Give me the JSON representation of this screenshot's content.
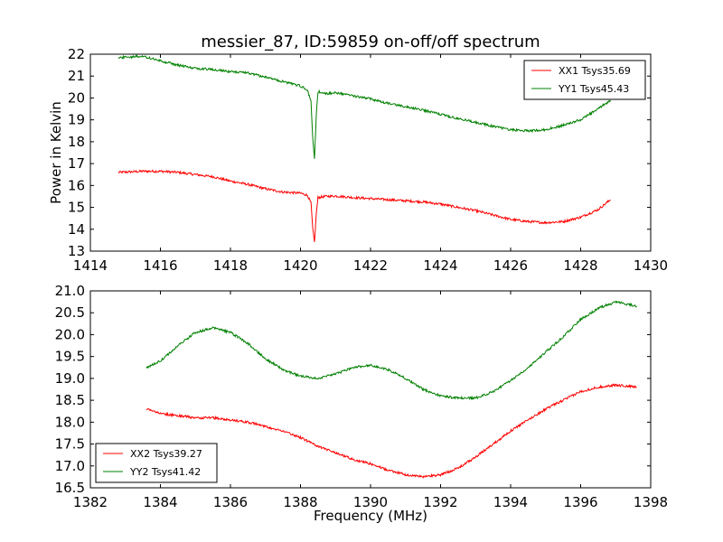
{
  "chart_data": [
    {
      "type": "line",
      "title": "messier_87, ID:59859 on-off/off spectrum",
      "xlabel": "",
      "ylabel": "Power in Kelvin",
      "xlim": [
        1414,
        1430
      ],
      "ylim": [
        13,
        22
      ],
      "xticks": [
        1414,
        1416,
        1418,
        1420,
        1422,
        1424,
        1426,
        1428,
        1430
      ],
      "yticks": [
        13,
        14,
        15,
        16,
        17,
        18,
        19,
        20,
        21,
        22
      ],
      "xtick_labels": [
        "1414",
        "1416",
        "1418",
        "1420",
        "1422",
        "1424",
        "1426",
        "1428",
        "1430"
      ],
      "ytick_labels": [
        "13",
        "14",
        "15",
        "16",
        "17",
        "18",
        "19",
        "20",
        "21",
        "22"
      ],
      "legend_position": "top-right",
      "series": [
        {
          "name": "XX1 Tsys35.69",
          "color": "#ff0000",
          "x": [
            1414.8,
            1415.5,
            1416.0,
            1416.5,
            1417.0,
            1417.5,
            1418.0,
            1418.5,
            1419.0,
            1419.5,
            1420.0,
            1420.2,
            1420.3,
            1420.35,
            1420.4,
            1420.45,
            1420.5,
            1420.7,
            1421.0,
            1421.5,
            1422.0,
            1422.5,
            1423.0,
            1423.5,
            1424.0,
            1424.5,
            1425.0,
            1425.5,
            1426.0,
            1426.5,
            1427.0,
            1427.5,
            1428.0,
            1428.5,
            1428.85
          ],
          "values": [
            16.6,
            16.65,
            16.65,
            16.6,
            16.5,
            16.4,
            16.2,
            16.05,
            15.85,
            15.7,
            15.65,
            15.55,
            15.2,
            14.0,
            13.4,
            14.7,
            15.45,
            15.5,
            15.52,
            15.45,
            15.4,
            15.35,
            15.3,
            15.25,
            15.15,
            15.0,
            14.85,
            14.65,
            14.45,
            14.35,
            14.3,
            14.35,
            14.55,
            14.9,
            15.35
          ]
        },
        {
          "name": "YY1 Tsys45.43",
          "color": "#008000",
          "x": [
            1414.8,
            1415.5,
            1416.0,
            1416.5,
            1417.0,
            1417.5,
            1418.0,
            1418.5,
            1419.0,
            1419.5,
            1420.0,
            1420.2,
            1420.3,
            1420.35,
            1420.4,
            1420.45,
            1420.5,
            1420.7,
            1421.0,
            1421.5,
            1422.0,
            1422.5,
            1423.0,
            1423.5,
            1424.0,
            1424.5,
            1425.0,
            1425.5,
            1426.0,
            1426.5,
            1427.0,
            1427.5,
            1428.0,
            1428.5,
            1428.85
          ],
          "values": [
            21.85,
            21.9,
            21.7,
            21.5,
            21.35,
            21.3,
            21.2,
            21.15,
            20.95,
            20.75,
            20.55,
            20.35,
            19.8,
            18.2,
            17.2,
            19.2,
            20.3,
            20.2,
            20.25,
            20.1,
            19.95,
            19.75,
            19.6,
            19.45,
            19.25,
            19.05,
            18.9,
            18.7,
            18.55,
            18.5,
            18.55,
            18.75,
            19.0,
            19.5,
            19.9
          ]
        }
      ]
    },
    {
      "type": "line",
      "title": "",
      "xlabel": "Frequency (MHz)",
      "ylabel": "",
      "xlim": [
        1382,
        1398
      ],
      "ylim": [
        16.5,
        21.0
      ],
      "xticks": [
        1382,
        1384,
        1386,
        1388,
        1390,
        1392,
        1394,
        1396,
        1398
      ],
      "yticks": [
        16.5,
        17.0,
        17.5,
        18.0,
        18.5,
        19.0,
        19.5,
        20.0,
        20.5,
        21.0
      ],
      "xtick_labels": [
        "1382",
        "1384",
        "1386",
        "1388",
        "1390",
        "1392",
        "1394",
        "1396",
        "1398"
      ],
      "ytick_labels": [
        "16.5",
        "17.0",
        "17.5",
        "18.0",
        "18.5",
        "19.0",
        "19.5",
        "20.0",
        "20.5",
        "21.0"
      ],
      "legend_position": "bottom-left",
      "series": [
        {
          "name": "XX2 Tsys39.27",
          "color": "#ff0000",
          "x": [
            1383.6,
            1384.0,
            1384.5,
            1385.0,
            1385.5,
            1386.0,
            1386.5,
            1387.0,
            1387.5,
            1388.0,
            1388.5,
            1389.0,
            1389.5,
            1390.0,
            1390.5,
            1391.0,
            1391.5,
            1392.0,
            1392.5,
            1393.0,
            1393.5,
            1394.0,
            1394.5,
            1395.0,
            1395.5,
            1396.0,
            1396.5,
            1397.0,
            1397.6
          ],
          "values": [
            18.3,
            18.2,
            18.15,
            18.1,
            18.1,
            18.05,
            18.0,
            17.9,
            17.8,
            17.65,
            17.45,
            17.3,
            17.15,
            17.05,
            16.9,
            16.8,
            16.75,
            16.8,
            16.95,
            17.2,
            17.5,
            17.8,
            18.05,
            18.3,
            18.5,
            18.7,
            18.8,
            18.85,
            18.8
          ]
        },
        {
          "name": "YY2 Tsys41.42",
          "color": "#008000",
          "x": [
            1383.6,
            1384.0,
            1384.5,
            1385.0,
            1385.5,
            1386.0,
            1386.5,
            1387.0,
            1387.5,
            1388.0,
            1388.5,
            1389.0,
            1389.5,
            1390.0,
            1390.5,
            1391.0,
            1391.5,
            1392.0,
            1392.5,
            1393.0,
            1393.5,
            1394.0,
            1394.5,
            1395.0,
            1395.5,
            1396.0,
            1396.5,
            1397.0,
            1397.6
          ],
          "values": [
            19.25,
            19.4,
            19.75,
            20.05,
            20.15,
            20.05,
            19.8,
            19.45,
            19.2,
            19.05,
            19.0,
            19.1,
            19.25,
            19.3,
            19.2,
            19.0,
            18.75,
            18.6,
            18.55,
            18.55,
            18.7,
            18.95,
            19.25,
            19.6,
            19.95,
            20.35,
            20.6,
            20.75,
            20.65
          ]
        }
      ]
    }
  ]
}
